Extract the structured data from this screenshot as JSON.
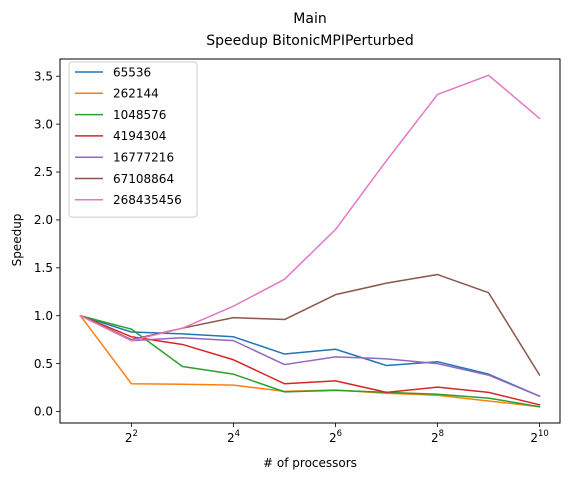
{
  "chart_data": {
    "type": "line",
    "title": "Main",
    "subtitle": "Speedup BitonicMPIPerturbed",
    "xlabel": "# of processors",
    "ylabel": "Speedup",
    "x_scale": "log2",
    "x": [
      2,
      4,
      8,
      16,
      32,
      64,
      128,
      256,
      512,
      1024
    ],
    "x_ticks": [
      {
        "value": 4,
        "base": "2",
        "exp": "2"
      },
      {
        "value": 16,
        "base": "2",
        "exp": "4"
      },
      {
        "value": 64,
        "base": "2",
        "exp": "6"
      },
      {
        "value": 256,
        "base": "2",
        "exp": "8"
      },
      {
        "value": 1024,
        "base": "2",
        "exp": "10"
      }
    ],
    "xlim_exp": [
      0.6,
      10.4
    ],
    "ylim": [
      -0.12,
      3.68
    ],
    "y_ticks": [
      "0.0",
      "0.5",
      "1.0",
      "1.5",
      "2.0",
      "2.5",
      "3.0",
      "3.5"
    ],
    "grid": false,
    "legend_position": "upper-left",
    "series": [
      {
        "name": "65536",
        "color": "#1f77b4",
        "values": [
          1.0,
          0.83,
          0.81,
          0.78,
          0.6,
          0.65,
          0.48,
          0.52,
          0.39,
          0.16
        ]
      },
      {
        "name": "262144",
        "color": "#ff7f0e",
        "values": [
          1.0,
          0.29,
          0.285,
          0.275,
          0.21,
          0.225,
          0.19,
          0.17,
          0.11,
          0.05
        ]
      },
      {
        "name": "1048576",
        "color": "#2ca02c",
        "values": [
          1.0,
          0.86,
          0.47,
          0.39,
          0.205,
          0.22,
          0.2,
          0.18,
          0.14,
          0.05
        ]
      },
      {
        "name": "4194304",
        "color": "#d62728",
        "values": [
          1.0,
          0.78,
          0.7,
          0.54,
          0.29,
          0.32,
          0.2,
          0.255,
          0.2,
          0.07
        ]
      },
      {
        "name": "16777216",
        "color": "#9467bd",
        "values": [
          1.0,
          0.74,
          0.77,
          0.74,
          0.49,
          0.57,
          0.55,
          0.5,
          0.38,
          0.16
        ]
      },
      {
        "name": "67108864",
        "color": "#8c564b",
        "values": [
          1.0,
          0.75,
          0.87,
          0.98,
          0.96,
          1.22,
          1.34,
          1.43,
          1.24,
          0.38
        ]
      },
      {
        "name": "268435456",
        "color": "#e377c2",
        "values": [
          1.0,
          0.74,
          0.87,
          1.1,
          1.38,
          1.9,
          2.62,
          3.31,
          3.51,
          3.06
        ]
      }
    ]
  }
}
